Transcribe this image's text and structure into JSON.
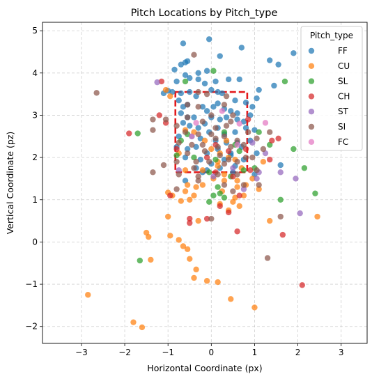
{
  "chart_data": {
    "type": "scatter",
    "title": "Pitch Locations by Pitch_type",
    "xlabel": "Horizontal Coordinate (px)",
    "ylabel": "Vertical Coordinate (pz)",
    "xlim": [
      -3.9,
      3.6
    ],
    "ylim": [
      -2.4,
      5.2
    ],
    "xticks": [
      -3,
      -2,
      -1,
      0,
      1,
      2,
      3
    ],
    "xtick_labels": [
      "−3",
      "−2",
      "−1",
      "0",
      "1",
      "2",
      "3"
    ],
    "yticks": [
      -2,
      -1,
      0,
      1,
      2,
      3,
      4,
      5
    ],
    "ytick_labels": [
      "−2",
      "−1",
      "0",
      "1",
      "2",
      "3",
      "4",
      "5"
    ],
    "grid": true,
    "legend": {
      "title": "Pitch_type",
      "placement": "top-right"
    },
    "strike_zone": {
      "x": [
        -0.83,
        0.83
      ],
      "y": [
        1.65,
        3.55
      ],
      "color": "#e31a1c",
      "style": "dashed"
    },
    "series": [
      {
        "name": "FF",
        "color": "#1f77b4",
        "points": [
          [
            -0.65,
            4.7
          ],
          [
            -0.6,
            4.25
          ],
          [
            -0.7,
            4.2
          ],
          [
            -0.55,
            4.28
          ],
          [
            -0.3,
            4.0
          ],
          [
            -0.1,
            4.05
          ],
          [
            0.2,
            4.4
          ],
          [
            0.7,
            4.6
          ],
          [
            1.35,
            4.3
          ],
          [
            1.55,
            4.2
          ],
          [
            1.9,
            4.47
          ],
          [
            -0.05,
            4.8
          ],
          [
            -0.85,
            4.08
          ],
          [
            -0.6,
            3.95
          ],
          [
            -0.5,
            3.88
          ],
          [
            -0.8,
            3.8
          ],
          [
            -0.3,
            3.85
          ],
          [
            -0.15,
            3.75
          ],
          [
            0.1,
            3.8
          ],
          [
            0.4,
            3.85
          ],
          [
            0.65,
            3.85
          ],
          [
            1.1,
            3.6
          ],
          [
            1.45,
            3.7
          ],
          [
            -1.0,
            3.58
          ],
          [
            -0.9,
            3.55
          ],
          [
            -1.1,
            3.52
          ],
          [
            -0.7,
            3.52
          ],
          [
            -0.5,
            3.55
          ],
          [
            -0.35,
            3.45
          ],
          [
            0.0,
            3.6
          ],
          [
            0.15,
            3.55
          ],
          [
            0.25,
            3.52
          ],
          [
            0.55,
            3.35
          ],
          [
            0.8,
            3.3
          ],
          [
            0.95,
            3.2
          ],
          [
            1.05,
            3.4
          ],
          [
            -0.75,
            3.35
          ],
          [
            -0.55,
            3.25
          ],
          [
            -0.65,
            3.2
          ],
          [
            -0.2,
            3.2
          ],
          [
            -0.1,
            3.1
          ],
          [
            0.05,
            3.2
          ],
          [
            0.15,
            3.28
          ],
          [
            0.3,
            3.15
          ],
          [
            0.45,
            3.1
          ],
          [
            0.6,
            3.05
          ],
          [
            -0.7,
            3.05
          ],
          [
            -0.55,
            2.95
          ],
          [
            -0.4,
            2.95
          ],
          [
            -0.15,
            2.8
          ],
          [
            0.0,
            2.95
          ],
          [
            0.2,
            2.9
          ],
          [
            0.35,
            2.95
          ],
          [
            0.6,
            2.9
          ],
          [
            0.75,
            2.85
          ],
          [
            0.9,
            3.0
          ],
          [
            -0.65,
            2.82
          ],
          [
            -0.5,
            2.75
          ],
          [
            -0.3,
            2.7
          ],
          [
            -0.05,
            2.6
          ],
          [
            0.15,
            2.7
          ],
          [
            0.3,
            2.55
          ],
          [
            0.55,
            2.6
          ],
          [
            0.8,
            2.7
          ],
          [
            1.0,
            2.65
          ],
          [
            -0.75,
            2.5
          ],
          [
            -0.45,
            2.5
          ],
          [
            -0.25,
            2.45
          ],
          [
            0.1,
            2.4
          ],
          [
            0.35,
            2.35
          ],
          [
            0.6,
            2.35
          ],
          [
            0.9,
            2.4
          ],
          [
            -0.8,
            2.25
          ],
          [
            -0.55,
            2.2
          ],
          [
            -0.35,
            2.25
          ],
          [
            -0.1,
            2.1
          ],
          [
            0.15,
            2.2
          ],
          [
            0.45,
            2.1
          ],
          [
            0.7,
            2.25
          ],
          [
            1.05,
            2.1
          ],
          [
            -0.6,
            2.0
          ],
          [
            -0.25,
            1.95
          ],
          [
            0.0,
            1.85
          ],
          [
            0.3,
            1.95
          ],
          [
            0.55,
            1.8
          ],
          [
            0.75,
            1.95
          ],
          [
            -0.35,
            1.75
          ],
          [
            -0.1,
            1.7
          ],
          [
            0.2,
            1.75
          ],
          [
            0.5,
            1.65
          ],
          [
            -0.6,
            1.45
          ],
          [
            1.6,
            1.82
          ],
          [
            -0.2,
            1.65
          ],
          [
            1.0,
            1.6
          ],
          [
            0.45,
            2.05
          ]
        ]
      },
      {
        "name": "CU",
        "color": "#ff7f0e",
        "points": [
          [
            -1.05,
            3.6
          ],
          [
            -0.95,
            3.45
          ],
          [
            -0.6,
            2.65
          ],
          [
            -0.4,
            2.6
          ],
          [
            0.0,
            2.2
          ],
          [
            0.2,
            2.1
          ],
          [
            0.4,
            2.0
          ],
          [
            0.55,
            1.95
          ],
          [
            0.15,
            1.8
          ],
          [
            -0.6,
            1.7
          ],
          [
            -0.2,
            1.7
          ],
          [
            0.3,
            1.6
          ],
          [
            -0.55,
            1.35
          ],
          [
            -0.35,
            1.3
          ],
          [
            -0.2,
            1.35
          ],
          [
            0.05,
            1.5
          ],
          [
            0.3,
            1.45
          ],
          [
            0.6,
            1.3
          ],
          [
            0.8,
            1.35
          ],
          [
            -1.0,
            1.17
          ],
          [
            -0.9,
            1.1
          ],
          [
            -0.6,
            1.2
          ],
          [
            -0.4,
            1.1
          ],
          [
            0.25,
            1.2
          ],
          [
            0.55,
            1.05
          ],
          [
            0.75,
            1.1
          ],
          [
            -0.7,
            0.97
          ],
          [
            -0.5,
            1.0
          ],
          [
            0.2,
            0.9
          ],
          [
            0.5,
            0.95
          ],
          [
            0.65,
            0.85
          ],
          [
            -1.0,
            0.6
          ],
          [
            -0.3,
            0.5
          ],
          [
            0.4,
            0.75
          ],
          [
            1.35,
            0.5
          ],
          [
            2.45,
            0.6
          ],
          [
            -1.5,
            0.22
          ],
          [
            -1.45,
            0.12
          ],
          [
            -0.95,
            0.15
          ],
          [
            -0.75,
            0.05
          ],
          [
            -0.65,
            -0.1
          ],
          [
            -0.55,
            -0.17
          ],
          [
            -1.4,
            -0.42
          ],
          [
            -0.5,
            -0.4
          ],
          [
            -0.35,
            -0.65
          ],
          [
            -0.4,
            -0.85
          ],
          [
            -0.1,
            -0.92
          ],
          [
            0.15,
            -0.95
          ],
          [
            0.45,
            -1.35
          ],
          [
            1.0,
            -1.55
          ],
          [
            -2.85,
            -1.25
          ],
          [
            -1.8,
            -1.9
          ],
          [
            -1.6,
            -2.02
          ],
          [
            1.2,
            1.9
          ],
          [
            0.7,
            1.75
          ],
          [
            1.1,
            1.25
          ],
          [
            0.35,
            2.4
          ],
          [
            -0.15,
            2.4
          ],
          [
            0.6,
            1.45
          ],
          [
            -0.75,
            2.1
          ],
          [
            0.15,
            1.9
          ],
          [
            0.95,
            1.5
          ]
        ]
      },
      {
        "name": "SL",
        "color": "#2ca02c",
        "points": [
          [
            0.05,
            4.05
          ],
          [
            1.7,
            3.8
          ],
          [
            -0.6,
            3.8
          ],
          [
            -1.7,
            2.57
          ],
          [
            -0.7,
            2.4
          ],
          [
            -0.8,
            2.05
          ],
          [
            -0.4,
            2.0
          ],
          [
            0.3,
            2.6
          ],
          [
            0.55,
            2.3
          ],
          [
            1.35,
            2.3
          ],
          [
            1.9,
            2.2
          ],
          [
            2.15,
            1.75
          ],
          [
            1.0,
            1.75
          ],
          [
            0.75,
            1.7
          ],
          [
            0.45,
            1.55
          ],
          [
            0.15,
            1.3
          ],
          [
            0.05,
            1.1
          ],
          [
            0.3,
            1.05
          ],
          [
            -0.05,
            0.95
          ],
          [
            0.2,
            1.15
          ],
          [
            1.6,
            1.0
          ],
          [
            2.4,
            1.15
          ],
          [
            -1.65,
            -0.44
          ],
          [
            -0.05,
            1.65
          ],
          [
            0.1,
            1.95
          ],
          [
            -0.55,
            2.55
          ],
          [
            1.1,
            2.6
          ],
          [
            0.65,
            2.15
          ]
        ]
      },
      {
        "name": "CH",
        "color": "#d62728",
        "points": [
          [
            -1.15,
            3.8
          ],
          [
            -1.2,
            3.0
          ],
          [
            -1.05,
            2.82
          ],
          [
            -1.9,
            2.57
          ],
          [
            -0.8,
            2.2
          ],
          [
            0.1,
            2.3
          ],
          [
            0.4,
            2.15
          ],
          [
            0.8,
            2.2
          ],
          [
            1.4,
            2.4
          ],
          [
            1.55,
            2.45
          ],
          [
            1.35,
            1.95
          ],
          [
            0.9,
            1.7
          ],
          [
            0.1,
            1.65
          ],
          [
            0.5,
            1.55
          ],
          [
            0.65,
            1.1
          ],
          [
            0.4,
            0.7
          ],
          [
            -0.95,
            1.1
          ],
          [
            -0.5,
            0.55
          ],
          [
            -0.5,
            0.45
          ],
          [
            -0.1,
            0.55
          ],
          [
            0.2,
            0.85
          ],
          [
            0.6,
            0.25
          ],
          [
            1.65,
            0.17
          ],
          [
            2.1,
            -1.02
          ],
          [
            -0.1,
            2.0
          ],
          [
            0.85,
            2.9
          ]
        ]
      },
      {
        "name": "ST",
        "color": "#9467bd",
        "points": [
          [
            -1.25,
            3.78
          ],
          [
            0.95,
            2.35
          ],
          [
            1.05,
            1.5
          ],
          [
            1.1,
            1.65
          ],
          [
            1.25,
            2.1
          ],
          [
            0.5,
            1.75
          ],
          [
            -0.75,
            1.7
          ],
          [
            0.05,
            1.55
          ],
          [
            0.75,
            1.25
          ],
          [
            1.95,
            1.5
          ],
          [
            1.6,
            1.65
          ],
          [
            2.05,
            0.68
          ]
        ]
      },
      {
        "name": "SI",
        "color": "#8c564b",
        "points": [
          [
            -0.4,
            4.43
          ],
          [
            -2.65,
            3.53
          ],
          [
            -0.3,
            3.55
          ],
          [
            -0.1,
            3.5
          ],
          [
            0.35,
            3.45
          ],
          [
            -0.55,
            3.25
          ],
          [
            -0.3,
            3.2
          ],
          [
            0.0,
            3.0
          ],
          [
            0.3,
            3.25
          ],
          [
            0.5,
            3.0
          ],
          [
            -1.35,
            2.9
          ],
          [
            -1.05,
            2.9
          ],
          [
            -0.55,
            2.95
          ],
          [
            -0.2,
            2.85
          ],
          [
            0.1,
            2.7
          ],
          [
            0.45,
            2.85
          ],
          [
            0.85,
            2.6
          ],
          [
            1.35,
            2.6
          ],
          [
            -0.8,
            2.75
          ],
          [
            -0.6,
            2.6
          ],
          [
            -0.3,
            2.55
          ],
          [
            0.0,
            2.55
          ],
          [
            0.3,
            2.5
          ],
          [
            0.6,
            2.4
          ],
          [
            1.05,
            2.45
          ],
          [
            -1.35,
            2.65
          ],
          [
            -0.75,
            2.35
          ],
          [
            -0.45,
            2.3
          ],
          [
            -0.2,
            2.3
          ],
          [
            0.15,
            2.25
          ],
          [
            0.45,
            2.25
          ],
          [
            0.75,
            2.3
          ],
          [
            1.2,
            2.2
          ],
          [
            -1.1,
            1.82
          ],
          [
            -0.8,
            1.9
          ],
          [
            -0.35,
            1.9
          ],
          [
            -0.05,
            1.9
          ],
          [
            0.3,
            1.85
          ],
          [
            0.6,
            1.9
          ],
          [
            0.95,
            2.0
          ],
          [
            -1.35,
            1.65
          ],
          [
            -0.75,
            1.6
          ],
          [
            -0.3,
            1.55
          ],
          [
            0.15,
            1.6
          ],
          [
            0.6,
            1.6
          ],
          [
            1.05,
            1.7
          ],
          [
            -0.3,
            1.45
          ],
          [
            0.3,
            1.35
          ],
          [
            0.75,
            1.35
          ],
          [
            -0.8,
            1.25
          ],
          [
            0.5,
            1.2
          ],
          [
            1.6,
            0.6
          ],
          [
            0.0,
            0.55
          ],
          [
            1.3,
            -0.38
          ],
          [
            0.2,
            2.05
          ],
          [
            -0.55,
            2.1
          ],
          [
            0.35,
            2.75
          ],
          [
            -0.15,
            2.15
          ],
          [
            0.8,
            2.0
          ],
          [
            1.1,
            1.35
          ],
          [
            0.1,
            2.45
          ],
          [
            -0.4,
            1.75
          ],
          [
            0.4,
            1.95
          ]
        ]
      },
      {
        "name": "FC",
        "color": "#e377c2",
        "points": [
          [
            -0.35,
            2.82
          ],
          [
            0.65,
            2.8
          ],
          [
            1.25,
            2.82
          ],
          [
            -0.45,
            2.5
          ],
          [
            0.25,
            3.1
          ],
          [
            0.6,
            2.3
          ]
        ]
      }
    ]
  }
}
